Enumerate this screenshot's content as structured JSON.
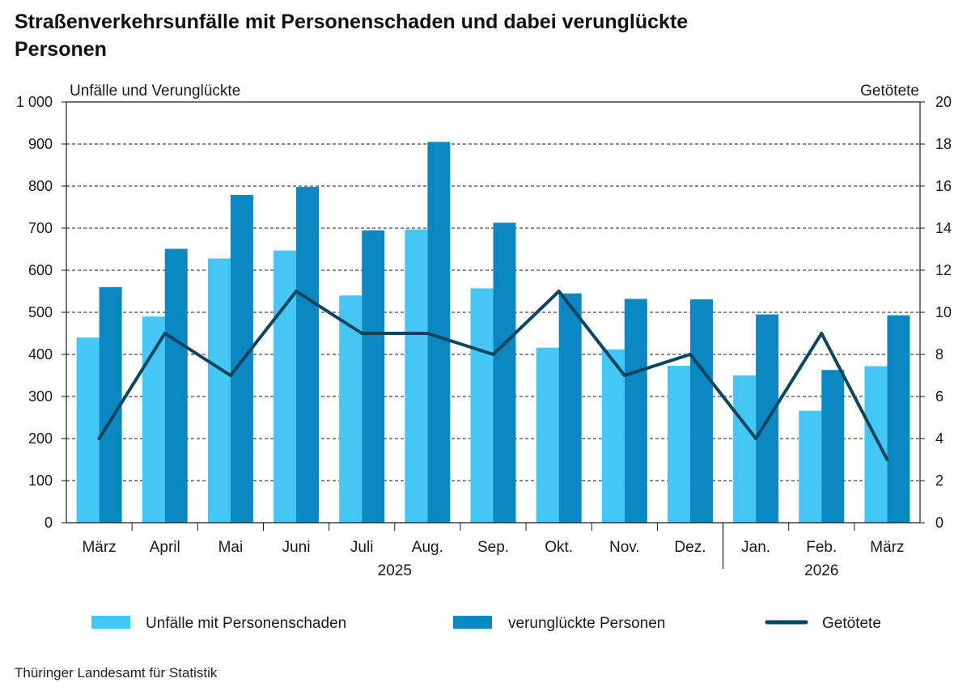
{
  "title": "Straßenverkehrsunfälle mit Personenschaden und dabei verunglückte Personen",
  "source": "Thüringer Landesamt für Statistik",
  "colors": {
    "unfaelle": "#45c7f5",
    "verunglueckte": "#0b87c2",
    "getoetete": "#0d445f"
  },
  "chart_data": {
    "type": "bar",
    "title": "Straßenverkehrsunfälle mit Personenschaden und dabei verunglückte Personen",
    "categories": [
      "März",
      "April",
      "Mai",
      "Juni",
      "Juli",
      "Aug.",
      "Sep.",
      "Okt.",
      "Nov.",
      "Dez.",
      "Jan.",
      "Feb.",
      "März"
    ],
    "year_groups": [
      {
        "label": "2025",
        "from": 0,
        "to": 9
      },
      {
        "label": "2026",
        "from": 10,
        "to": 12
      }
    ],
    "ylabel": "Unfälle und Verunglückte",
    "y2label": "Getötete",
    "ylim": [
      0,
      1000
    ],
    "y2lim": [
      0,
      20
    ],
    "yticks": [
      "0",
      "100",
      "200",
      "300",
      "400",
      "500",
      "600",
      "700",
      "800",
      "900",
      "1 000"
    ],
    "y2ticks": [
      "0",
      "2",
      "4",
      "6",
      "8",
      "10",
      "12",
      "14",
      "16",
      "18",
      "20"
    ],
    "grid": true,
    "legend_position": "bottom",
    "series": [
      {
        "name": "Unfälle mit Personenschaden",
        "type": "bar",
        "axis": "left",
        "values": [
          440,
          490,
          628,
          647,
          540,
          697,
          557,
          416,
          412,
          373,
          350,
          266,
          372
        ]
      },
      {
        "name": "verunglückte Personen",
        "type": "bar",
        "axis": "left",
        "values": [
          560,
          651,
          779,
          798,
          695,
          905,
          713,
          545,
          532,
          531,
          495,
          363,
          493
        ]
      },
      {
        "name": "Getötete",
        "type": "line",
        "axis": "right",
        "values": [
          4,
          9,
          7,
          11,
          9,
          9,
          8,
          11,
          7,
          8,
          4,
          9,
          3
        ]
      }
    ]
  }
}
